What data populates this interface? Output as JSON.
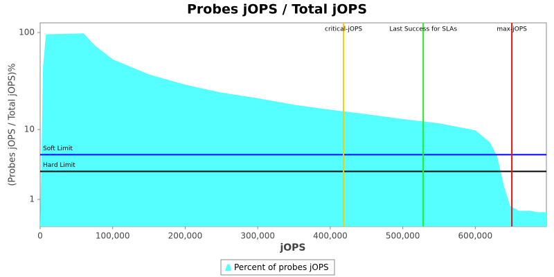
{
  "chart_data": {
    "type": "area",
    "title": "Probes jOPS / Total jOPS",
    "x_label": "jOPS",
    "y_label": "(Probes jOPS / Total jOPS)%",
    "yscale": "log",
    "x": [
      0,
      4000,
      8000,
      60000,
      75000,
      100000,
      150000,
      200000,
      250000,
      300000,
      350000,
      400000,
      450000,
      500000,
      550000,
      600000,
      620000,
      630000,
      640000,
      648000,
      660000,
      675000,
      685000,
      698000
    ],
    "series": [
      {
        "name": "Percent of probes jOPS",
        "color": "#55ffff",
        "values": [
          0,
          45,
          96,
          98,
          74,
          53,
          37,
          29,
          24,
          21,
          18,
          16,
          14.4,
          12.8,
          11.6,
          9.8,
          7.1,
          4.8,
          1.7,
          0.7,
          0.5,
          0.5,
          0.45,
          0.45
        ]
      }
    ],
    "xlim": [
      0,
      698000
    ],
    "ylim": [
      0,
      126
    ],
    "xticks": [
      {
        "value": 0,
        "label": "0"
      },
      {
        "value": 100000,
        "label": "100,000"
      },
      {
        "value": 200000,
        "label": "200,000"
      },
      {
        "value": 300000,
        "label": "300,000"
      },
      {
        "value": 400000,
        "label": "400,000"
      },
      {
        "value": 500000,
        "label": "500,000"
      },
      {
        "value": 600000,
        "label": "600,000"
      }
    ],
    "yticks": [
      1,
      10,
      100
    ],
    "vlines": [
      {
        "label": "critical-jOPS",
        "value": 418300,
        "color": "#f0d000"
      },
      {
        "label": "Last Success for SLAs",
        "value": 528200,
        "color": "#22ee22"
      },
      {
        "label": "max-jOPS",
        "value": 650400,
        "color": "#dd1111"
      }
    ],
    "hlines": [
      {
        "label": "Soft Limit",
        "value": 5,
        "color": "#0000ff"
      },
      {
        "label": "Hard Limit",
        "value": 3,
        "color": "#000000"
      }
    ]
  }
}
